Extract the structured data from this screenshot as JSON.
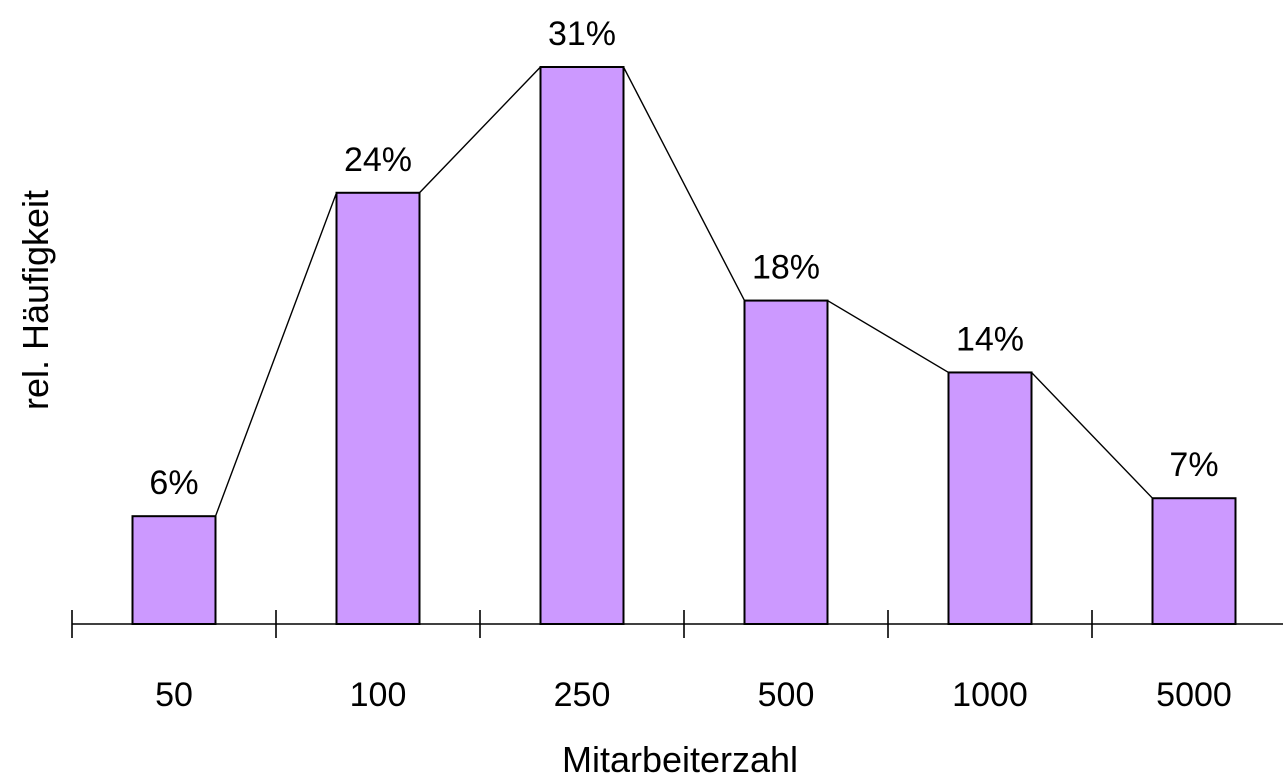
{
  "chart_data": {
    "type": "bar",
    "categories": [
      "50",
      "100",
      "250",
      "500",
      "1000",
      "5000"
    ],
    "values": [
      6,
      24,
      31,
      18,
      14,
      7
    ],
    "value_labels": [
      "6%",
      "24%",
      "31%",
      "18%",
      "14%",
      "7%"
    ],
    "xlabel": "Mitarbeiterzahl",
    "ylabel": "rel. Häufigkeit",
    "ylim": [
      0,
      31
    ],
    "overlay": "line connecting bar tops",
    "grid": false,
    "bar_color": "#cc99ff",
    "line_color": "#000000"
  }
}
